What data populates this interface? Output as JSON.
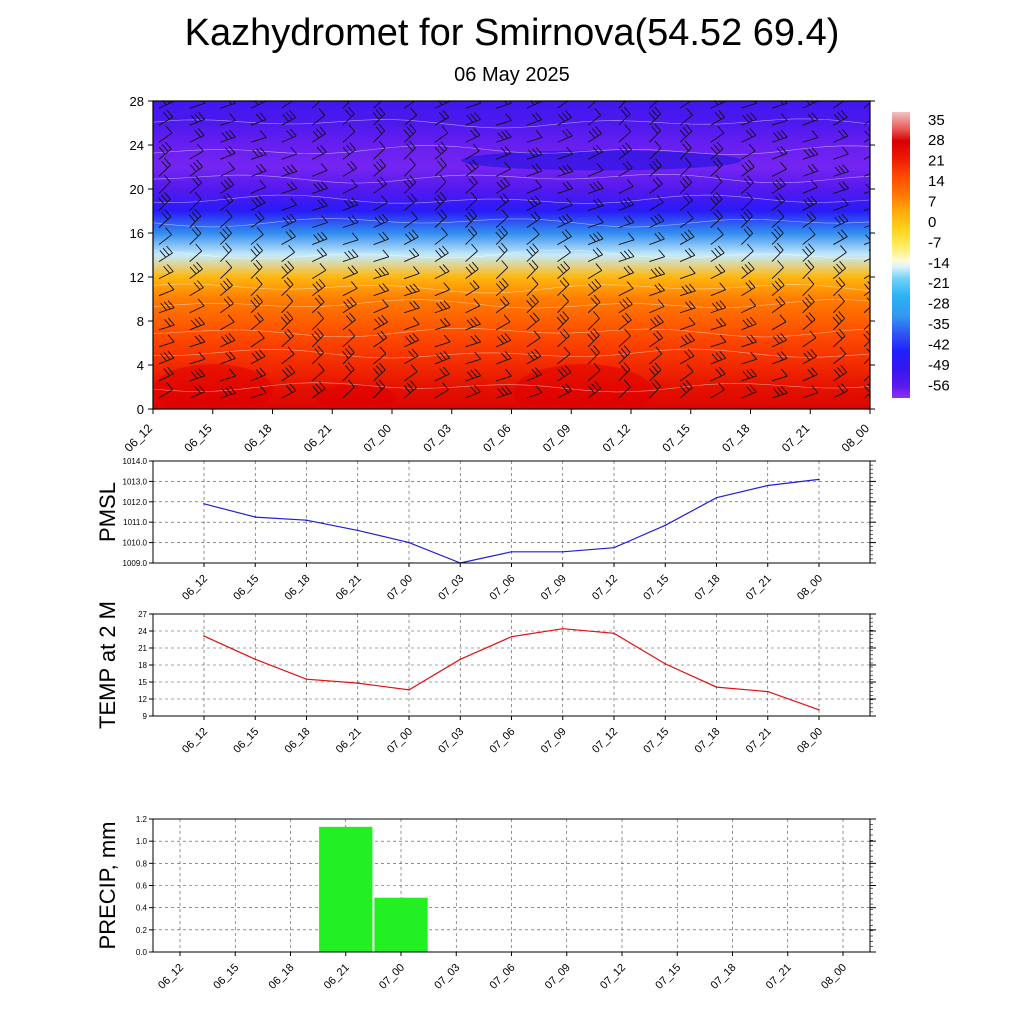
{
  "title": "Kazhydromet for Smirnova(54.52 69.4)",
  "subtitle": "06 May 2025",
  "colors": {
    "pmsl_line": "#1f1fd6",
    "temp_line": "#e01010",
    "precip_bar": "#22f022",
    "axis": "#000000",
    "grid": "#000000"
  },
  "chart_data": [
    {
      "type": "heatmap",
      "title": "",
      "x_ticks": [
        "06_12",
        "06_15",
        "06_18",
        "06_21",
        "07_00",
        "07_03",
        "07_06",
        "07_09",
        "07_12",
        "07_15",
        "07_18",
        "07_21",
        "08_00"
      ],
      "y_ticks": [
        0,
        4,
        8,
        12,
        16,
        20,
        24,
        28
      ],
      "ylim": [
        0,
        28
      ],
      "colorbar_labels": [
        "35",
        "28",
        "21",
        "14",
        "7",
        "0",
        "-7",
        "-14",
        "-21",
        "-28",
        "-35",
        "-42",
        "-49",
        "-56"
      ],
      "colorbar_range": [
        -60,
        38
      ],
      "temperature_profile": {
        "levels": [
          0,
          2,
          4,
          6,
          8,
          10,
          12,
          14,
          16,
          18,
          20,
          22,
          24,
          26,
          28
        ],
        "values": [
          27,
          24,
          20,
          17,
          13,
          9,
          2,
          -16,
          -33,
          -47,
          -55,
          -58,
          -57,
          -54,
          -52
        ]
      },
      "overlay": "wind barbs and contour lines"
    },
    {
      "type": "line",
      "ylabel": "PMSL",
      "x": [
        "06_12",
        "06_15",
        "06_18",
        "06_21",
        "07_00",
        "07_03",
        "07_06",
        "07_09",
        "07_12",
        "07_15",
        "07_18",
        "07_21",
        "08_00"
      ],
      "y_ticks": [
        "1009.0",
        "1010.0",
        "1011.0",
        "1012.0",
        "1013.0",
        "1014.0"
      ],
      "ylim": [
        1009,
        1014
      ],
      "values": [
        1011.9,
        1011.25,
        1011.1,
        1010.6,
        1010.0,
        1009.0,
        1009.55,
        1009.55,
        1009.75,
        1010.85,
        1012.2,
        1012.8,
        1013.1
      ],
      "grid": true
    },
    {
      "type": "line",
      "ylabel": "TEMP at 2 M",
      "x": [
        "06_12",
        "06_15",
        "06_18",
        "06_21",
        "07_00",
        "07_03",
        "07_06",
        "07_09",
        "07_12",
        "07_15",
        "07_18",
        "07_21",
        "08_00"
      ],
      "y_ticks": [
        "9",
        "12",
        "15",
        "18",
        "21",
        "24",
        "27"
      ],
      "ylim": [
        9,
        27
      ],
      "values": [
        23.1,
        19.0,
        15.5,
        14.8,
        13.6,
        19.0,
        23.0,
        24.4,
        23.6,
        18.2,
        14.1,
        13.3,
        10.1
      ],
      "grid": true
    },
    {
      "type": "bar",
      "ylabel": "PRECIP, mm",
      "categories": [
        "06_12",
        "06_15",
        "06_18",
        "06_21",
        "07_00",
        "07_03",
        "07_06",
        "07_09",
        "07_12",
        "07_15",
        "07_18",
        "07_21",
        "08_00"
      ],
      "y_ticks": [
        "0.0",
        "0.2",
        "0.4",
        "0.6",
        "0.8",
        "1.0",
        "1.2"
      ],
      "ylim": [
        0,
        1.2
      ],
      "values": [
        0,
        0,
        0,
        1.13,
        0.49,
        0,
        0,
        0,
        0,
        0,
        0,
        0,
        0
      ],
      "grid": true
    }
  ]
}
